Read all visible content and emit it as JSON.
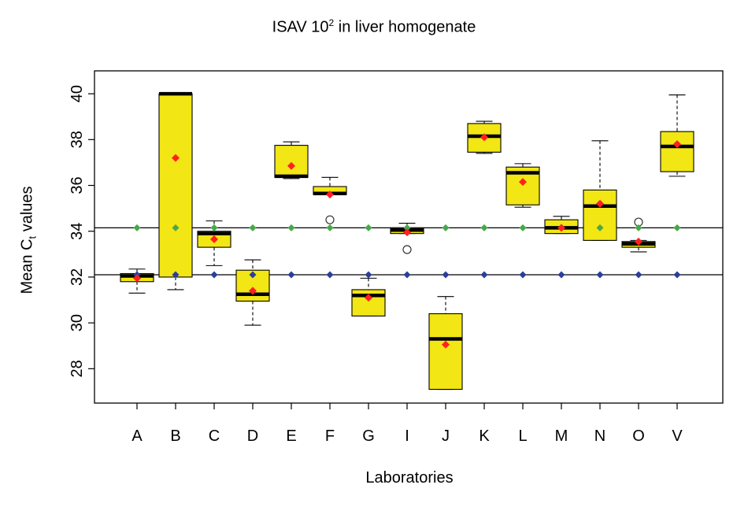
{
  "chart_data": {
    "type": "box",
    "title": {
      "main": "ISAV 10",
      "superscript": "2",
      "rest": " in liver homogenate"
    },
    "xlabel": "Laboratories",
    "ylabel": {
      "main": "Mean C",
      "subscript": "t",
      "rest": " values"
    },
    "ylim": [
      26.5,
      41.0
    ],
    "yticks": [
      28,
      30,
      32,
      34,
      36,
      38,
      40
    ],
    "grid": false,
    "reference_lines": [
      {
        "name": "upper",
        "y": 34.15
      },
      {
        "name": "lower",
        "y": 32.1
      }
    ],
    "categories": [
      "A",
      "B",
      "C",
      "D",
      "E",
      "F",
      "G",
      "I",
      "J",
      "K",
      "L",
      "M",
      "N",
      "O",
      "V"
    ],
    "boxes": [
      {
        "lab": "A",
        "whisker_low": 31.3,
        "q1": 31.8,
        "median": 32.05,
        "q3": 32.15,
        "whisker_high": 32.35,
        "mean": 31.95,
        "outliers": []
      },
      {
        "lab": "B",
        "whisker_low": 31.45,
        "q1": 32.0,
        "median": 40.0,
        "q3": 40.0,
        "whisker_high": 40.0,
        "mean": 37.2,
        "outliers": []
      },
      {
        "lab": "C",
        "whisker_low": 32.5,
        "q1": 33.3,
        "median": 33.9,
        "q3": 34.0,
        "whisker_high": 34.45,
        "mean": 33.65,
        "outliers": []
      },
      {
        "lab": "D",
        "whisker_low": 29.9,
        "q1": 30.95,
        "median": 31.25,
        "q3": 32.3,
        "whisker_high": 32.75,
        "mean": 31.4,
        "outliers": []
      },
      {
        "lab": "E",
        "whisker_low": 36.3,
        "q1": 36.35,
        "median": 36.4,
        "q3": 37.75,
        "whisker_high": 37.9,
        "mean": 36.85,
        "outliers": []
      },
      {
        "lab": "F",
        "whisker_low": 35.6,
        "q1": 35.6,
        "median": 35.65,
        "q3": 35.95,
        "whisker_high": 36.35,
        "mean": 35.6,
        "outliers": [
          34.5
        ]
      },
      {
        "lab": "G",
        "whisker_low": 30.3,
        "q1": 30.3,
        "median": 31.2,
        "q3": 31.45,
        "whisker_high": 31.95,
        "mean": 31.1,
        "outliers": []
      },
      {
        "lab": "I",
        "whisker_low": 33.9,
        "q1": 33.9,
        "median": 34.05,
        "q3": 34.15,
        "whisker_high": 34.35,
        "mean": 33.95,
        "outliers": [
          33.2
        ]
      },
      {
        "lab": "J",
        "whisker_low": 27.1,
        "q1": 27.1,
        "median": 29.3,
        "q3": 30.4,
        "whisker_high": 31.15,
        "mean": 29.05,
        "outliers": []
      },
      {
        "lab": "K",
        "whisker_low": 37.4,
        "q1": 37.45,
        "median": 38.15,
        "q3": 38.7,
        "whisker_high": 38.8,
        "mean": 38.1,
        "outliers": []
      },
      {
        "lab": "L",
        "whisker_low": 35.05,
        "q1": 35.15,
        "median": 36.55,
        "q3": 36.8,
        "whisker_high": 36.95,
        "mean": 36.15,
        "outliers": []
      },
      {
        "lab": "M",
        "whisker_low": 33.9,
        "q1": 33.9,
        "median": 34.15,
        "q3": 34.5,
        "whisker_high": 34.65,
        "mean": 34.15,
        "outliers": []
      },
      {
        "lab": "N",
        "whisker_low": 33.6,
        "q1": 33.6,
        "median": 35.1,
        "q3": 35.8,
        "whisker_high": 37.95,
        "mean": 35.2,
        "outliers": []
      },
      {
        "lab": "O",
        "whisker_low": 33.1,
        "q1": 33.3,
        "median": 33.45,
        "q3": 33.55,
        "whisker_high": 33.6,
        "mean": 33.55,
        "outliers": [
          34.4
        ]
      },
      {
        "lab": "V",
        "whisker_low": 36.4,
        "q1": 36.6,
        "median": 37.7,
        "q3": 38.35,
        "whisker_high": 39.95,
        "mean": 37.8,
        "outliers": []
      }
    ],
    "colors": {
      "box_fill": "#f2e614",
      "mean_marker": "#ff2020",
      "upper_marker": "#47a84a",
      "lower_marker": "#2b3f99",
      "axis": "#000000"
    }
  }
}
